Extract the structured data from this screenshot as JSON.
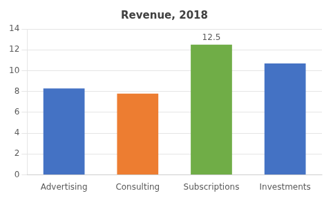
{
  "chart_data": {
    "type": "bar",
    "title": "Revenue, 2018",
    "categories": [
      "Advertising",
      "Consulting",
      "Subscriptions",
      "Investments"
    ],
    "values": [
      8.3,
      7.8,
      12.5,
      10.7
    ],
    "colors": [
      "#4472C4",
      "#ED7D31",
      "#70AD47",
      "#4472C4"
    ],
    "ylim": [
      0,
      14
    ],
    "yticks": [
      0,
      2,
      4,
      6,
      8,
      10,
      12,
      14
    ],
    "grid": true,
    "annotations": [
      {
        "category": "Subscriptions",
        "value": 12.5,
        "text": "12.5"
      }
    ]
  }
}
